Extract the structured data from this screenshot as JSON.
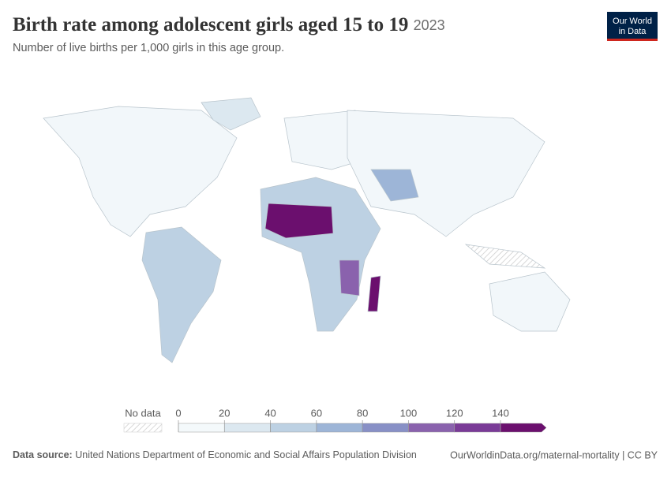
{
  "header": {
    "title": "Birth rate among adolescent girls aged 15 to 19",
    "year": "2023",
    "subtitle": "Number of live births per 1,000 girls in this age group.",
    "logo": [
      "Our World",
      "in Data"
    ]
  },
  "legend": {
    "no_data": "No data",
    "ticks": [
      0,
      20,
      40,
      60,
      80,
      100,
      120,
      140
    ],
    "colors": [
      "#f4f9fb",
      "#dce8f0",
      "#bdd1e3",
      "#9db5d7",
      "#8890c6",
      "#8a62ad",
      "#7a3b97",
      "#6b0f6e"
    ]
  },
  "footer": {
    "source_label": "Data source:",
    "source": "United Nations Department of Economic and Social Affairs Population Division",
    "link": "OurWorldinData.org/maternal-mortality | CC BY"
  }
}
